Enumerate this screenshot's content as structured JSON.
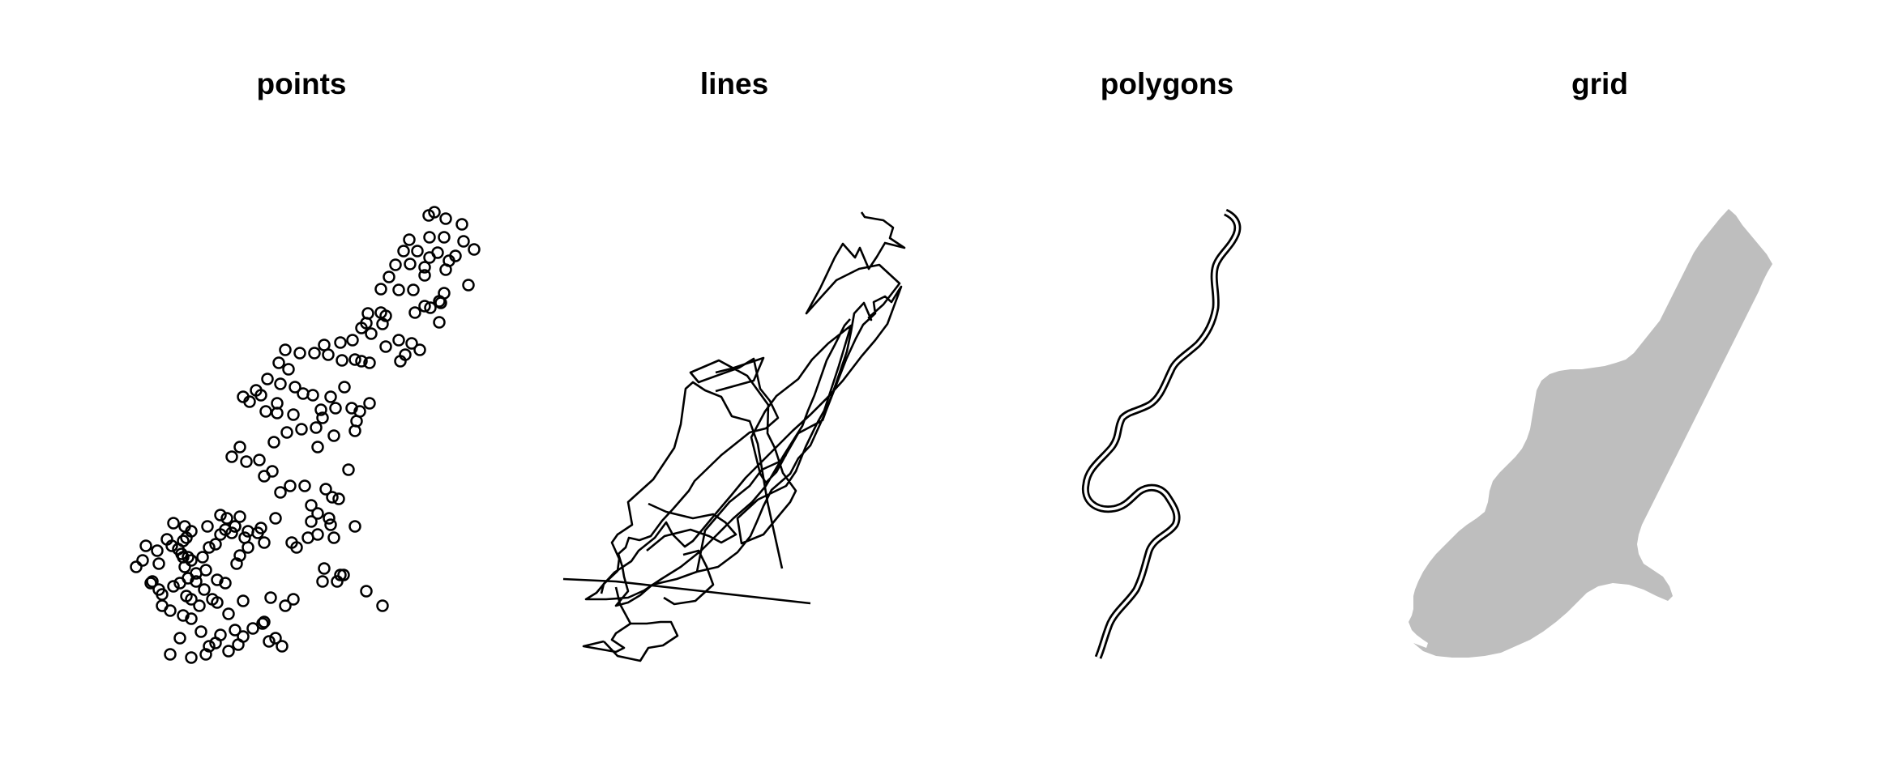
{
  "panels": {
    "points": {
      "title": "points"
    },
    "lines": {
      "title": "lines"
    },
    "polygons": {
      "title": "polygons"
    },
    "grid": {
      "title": "grid"
    }
  },
  "colors": {
    "background": "#ffffff",
    "stroke": "#000000",
    "grid_fill": "#bebebe"
  }
}
